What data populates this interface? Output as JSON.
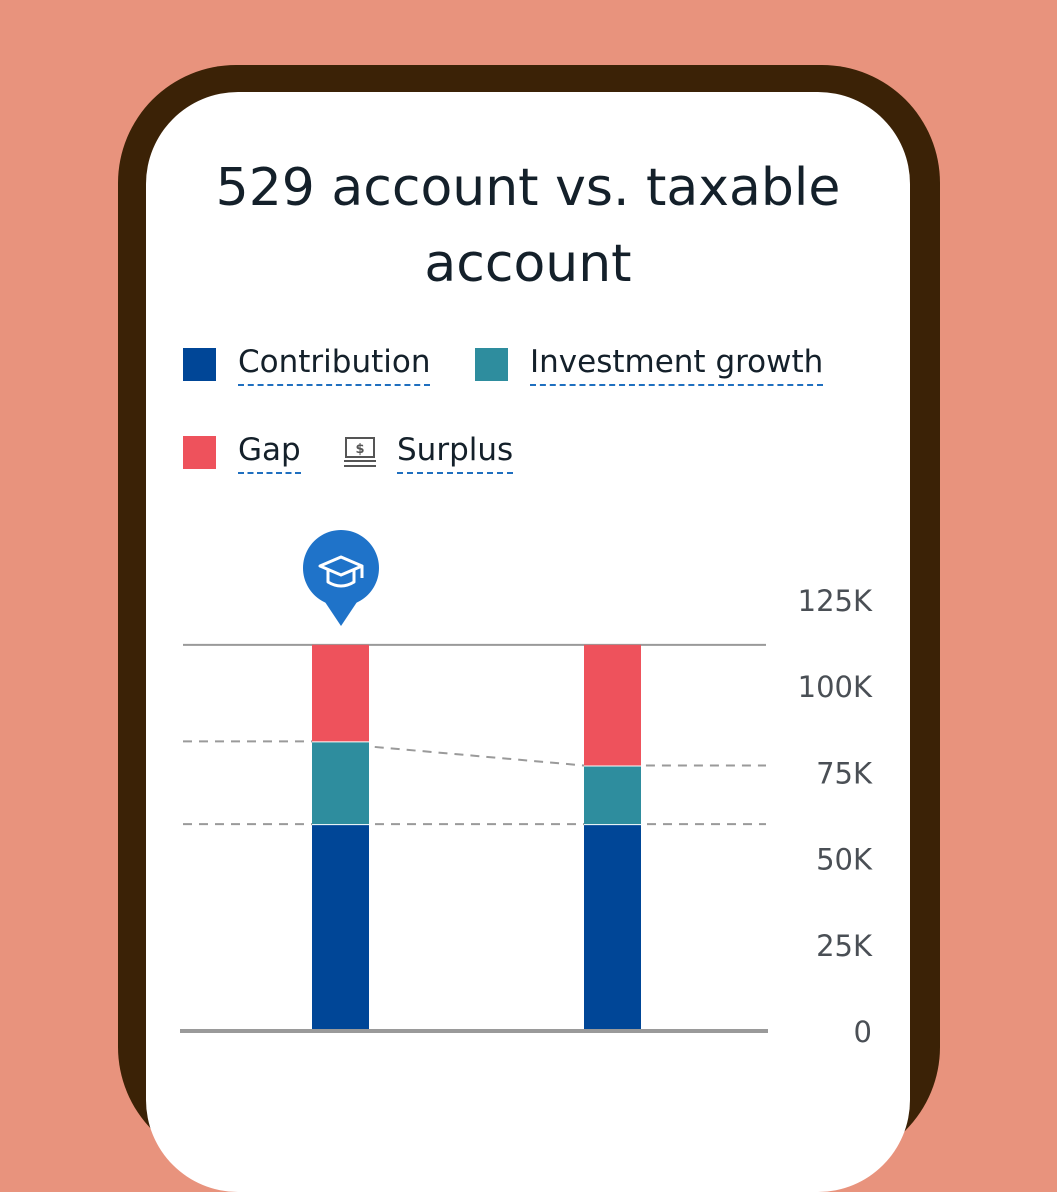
{
  "title": "529 account vs. taxable account",
  "legend": [
    {
      "label": "Contribution",
      "color": "#004697",
      "icon": "square-swatch"
    },
    {
      "label": "Investment growth",
      "color": "#2e8d9e",
      "icon": "square-swatch"
    },
    {
      "label": "Gap",
      "color": "#ee525c",
      "icon": "square-swatch"
    },
    {
      "label": "Surplus",
      "color": "#555555",
      "icon": "dollar-bill-stack-icon"
    }
  ],
  "marker_icon": "graduation-cap-icon",
  "chart_data": {
    "type": "bar",
    "stacked": true,
    "categories": [
      "",
      ""
    ],
    "series": [
      {
        "name": "Contribution",
        "color": "#004697",
        "values": [
          60000,
          60000
        ]
      },
      {
        "name": "Investment growth",
        "color": "#2e8d9e",
        "values": [
          24000,
          17000
        ]
      },
      {
        "name": "Gap",
        "color": "#ee525c",
        "values": [
          28000,
          35000
        ]
      }
    ],
    "target": 112000,
    "yticks": [
      "0",
      "25K",
      "50K",
      "75K",
      "100K",
      "125K"
    ],
    "ytick_values": [
      0,
      25000,
      50000,
      75000,
      100000,
      125000
    ],
    "ylim": [
      0,
      125000
    ],
    "axis_position": "right",
    "grid": false
  }
}
